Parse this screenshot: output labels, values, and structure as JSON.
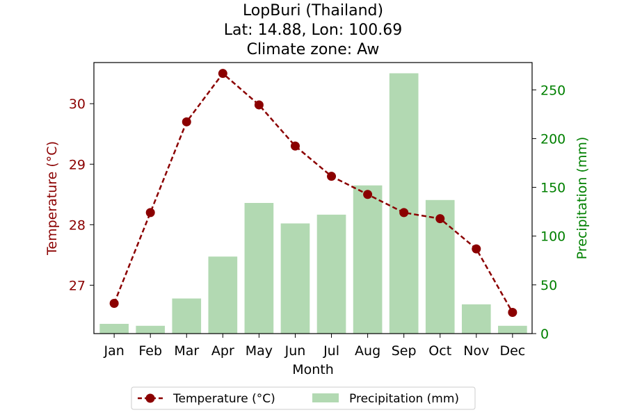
{
  "chart_data": {
    "type": "bar+line",
    "title_lines": [
      "LopBuri (Thailand)",
      "Lat: 14.88, Lon: 100.69",
      "Climate zone: Aw"
    ],
    "categories": [
      "Jan",
      "Feb",
      "Mar",
      "Apr",
      "May",
      "Jun",
      "Jul",
      "Aug",
      "Sep",
      "Oct",
      "Nov",
      "Dec"
    ],
    "xlabel": "Month",
    "temperature": {
      "name": "Temperature (°C)",
      "ylabel": "Temperature (°C)",
      "values": [
        26.7,
        28.2,
        29.7,
        30.5,
        29.98,
        29.3,
        28.8,
        28.5,
        28.2,
        28.1,
        27.6,
        26.55
      ],
      "ylim": [
        26.2,
        30.68
      ],
      "ticks": [
        27,
        28,
        29,
        30
      ],
      "color": "#8b0000",
      "style": "dashed line with circle markers"
    },
    "precipitation": {
      "name": "Precipitation (mm)",
      "ylabel": "Precipitation (mm)",
      "values": [
        10,
        8,
        36,
        79,
        134,
        113,
        122,
        152,
        267,
        137,
        30,
        8
      ],
      "ylim": [
        0,
        278
      ],
      "ticks": [
        0,
        50,
        100,
        150,
        200,
        250
      ],
      "color": "#b2d9b2",
      "axis_color": "#008000"
    },
    "legend": {
      "placement": "bottom-center",
      "entries": [
        "Temperature (°C)",
        "Precipitation (mm)"
      ]
    }
  }
}
